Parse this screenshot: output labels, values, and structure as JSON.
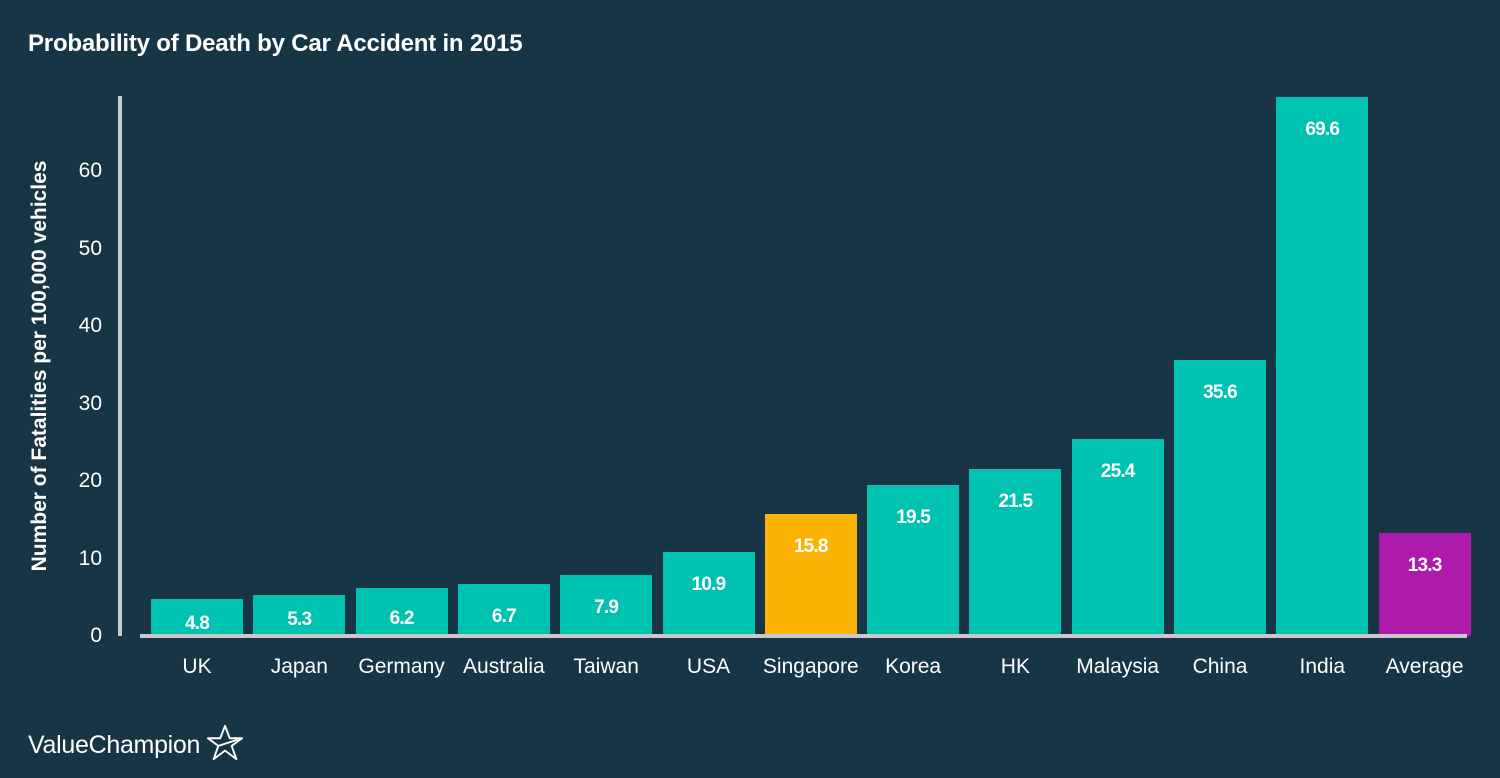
{
  "title": "Probability of Death by Car Accident in 2015",
  "brand": {
    "name": "ValueChampion",
    "icon": "star-outline-icon"
  },
  "colors": {
    "background": "#173545",
    "default_bar": "#00c2b0",
    "highlight_singapore": "#fbb404",
    "highlight_average": "#ad1aac",
    "axis": "#c9c9c9",
    "text": "#ffffff"
  },
  "axis": {
    "ylabel": "Number of Fatalities per 100,000 vehicles",
    "yticks": [
      "0",
      "10",
      "20",
      "30",
      "40",
      "50",
      "60"
    ]
  },
  "chart_data": {
    "type": "bar",
    "title": "Probability of Death by Car Accident in 2015",
    "xlabel": "",
    "ylabel": "Number of Fatalities per 100,000 vehicles",
    "ylim": [
      0,
      70
    ],
    "yticks": [
      0,
      10,
      20,
      30,
      40,
      50,
      60
    ],
    "grid": false,
    "legend": null,
    "categories": [
      "UK",
      "Japan",
      "Germany",
      "Australia",
      "Taiwan",
      "USA",
      "Singapore",
      "Korea",
      "HK",
      "Malaysia",
      "China",
      "India",
      "Average"
    ],
    "values": [
      4.8,
      5.3,
      6.2,
      6.7,
      7.9,
      10.9,
      15.8,
      19.5,
      21.5,
      25.4,
      35.6,
      69.6,
      13.3
    ],
    "labels": [
      "4.8",
      "5.3",
      "6.2",
      "6.7",
      "7.9",
      "10.9",
      "15.8",
      "19.5",
      "21.5",
      "25.4",
      "35.6",
      "69.6",
      "13.3"
    ],
    "bar_colors": [
      "#00c2b0",
      "#00c2b0",
      "#00c2b0",
      "#00c2b0",
      "#00c2b0",
      "#00c2b0",
      "#fbb404",
      "#00c2b0",
      "#00c2b0",
      "#00c2b0",
      "#00c2b0",
      "#00c2b0",
      "#ad1aac"
    ]
  }
}
